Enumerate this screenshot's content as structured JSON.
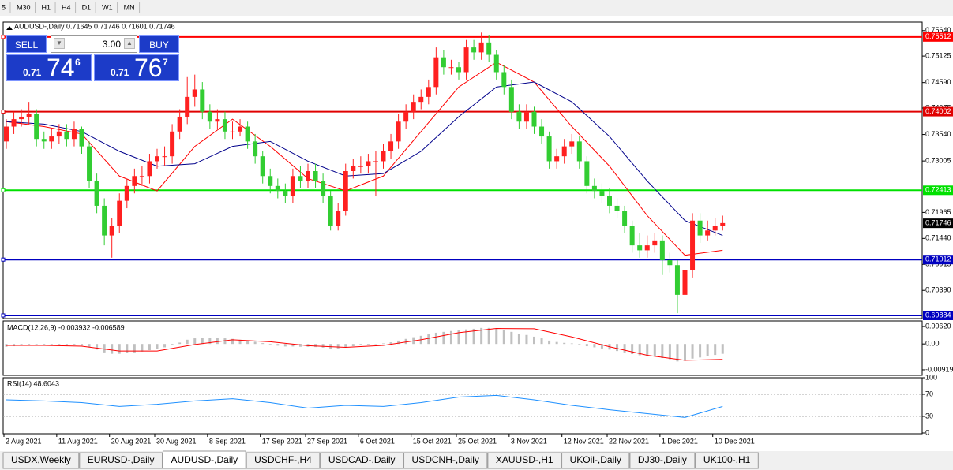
{
  "toolbar": {
    "timeframes": [
      "5",
      "M30",
      "H1",
      "H4",
      "D1",
      "W1",
      "MN"
    ]
  },
  "trade_panel": {
    "sell_label": "SELL",
    "lots": "3.00",
    "buy_label": "BUY",
    "sell": {
      "prefix": "0.71",
      "big": "74",
      "small": "6"
    },
    "buy": {
      "prefix": "0.71",
      "big": "76",
      "small": "7"
    }
  },
  "tabs": [
    "USDX,Weekly",
    "EURUSD-,Daily",
    "AUDUSD-,Daily",
    "USDCHF-,H4",
    "USDCAD-,Daily",
    "USDCNH-,Daily",
    "XAUUSD-,H1",
    "UKOil-,Daily",
    "DJ30-,Daily",
    "UK100-,H1"
  ],
  "active_tab": 2,
  "chart_data": [
    {
      "type": "candlestick",
      "title": "AUDUSD-,Daily  0.71645 0.71746 0.71601 0.71746",
      "up_color": "#ff2020",
      "down_color": "#32cd32",
      "ylim": [
        0.6982,
        0.7578
      ],
      "yticks": [
        {
          "value": 0.7564,
          "label": "0.75640"
        },
        0.75125,
        {
          "value": 0.7459,
          "label": "0.74590"
        },
        0.74075,
        {
          "value": 0.7354,
          "label": "0.73540"
        },
        0.73005,
        0.71965,
        {
          "value": 0.7144,
          "label": "0.71440"
        },
        0.70915,
        {
          "value": 0.7039,
          "label": "0.70390"
        }
      ],
      "levels": [
        {
          "value": 0.75512,
          "color": "#ff0000"
        },
        {
          "value": 0.74002,
          "color": "#e00000"
        },
        {
          "value": 0.72413,
          "color": "#00e000"
        },
        {
          "value": 0.71012,
          "color": "#0000c0"
        },
        {
          "value": 0.69884,
          "color": "#0000c0"
        }
      ],
      "last": 0.71746,
      "xticks": [
        {
          "value": 0,
          "label": "2 Aug 2021"
        },
        {
          "value": 7,
          "label": "11 Aug 2021"
        },
        {
          "value": 14,
          "label": "20 Aug 2021"
        },
        {
          "value": 20,
          "label": "30 Aug 2021"
        },
        {
          "value": 27,
          "label": "8 Sep 2021"
        },
        {
          "value": 34,
          "label": "17 Sep 2021"
        },
        {
          "value": 40,
          "label": "27 Sep 2021"
        },
        {
          "value": 47,
          "label": "6 Oct 2021"
        },
        {
          "value": 54,
          "label": "15 Oct 2021"
        },
        {
          "value": 60,
          "label": "25 Oct 2021"
        },
        {
          "value": 67,
          "label": "3 Nov 2021"
        },
        {
          "value": 74,
          "label": "12 Nov 2021"
        },
        {
          "value": 80,
          "label": "22 Nov 2021"
        },
        {
          "value": 87,
          "label": "1 Dec 2021"
        },
        {
          "value": 94,
          "label": "10 Dec 2021"
        }
      ],
      "ohlc": [
        [
          0.734,
          0.7385,
          0.7325,
          0.737
        ],
        [
          0.737,
          0.74,
          0.7355,
          0.7385
        ],
        [
          0.7385,
          0.7405,
          0.737,
          0.739
        ],
        [
          0.739,
          0.742,
          0.7375,
          0.7395
        ],
        [
          0.7395,
          0.7405,
          0.733,
          0.7345
        ],
        [
          0.7345,
          0.736,
          0.7325,
          0.734
        ],
        [
          0.734,
          0.7365,
          0.7325,
          0.735
        ],
        [
          0.735,
          0.7375,
          0.7335,
          0.736
        ],
        [
          0.736,
          0.7375,
          0.733,
          0.7345
        ],
        [
          0.7345,
          0.738,
          0.733,
          0.7365
        ],
        [
          0.7365,
          0.737,
          0.7315,
          0.733
        ],
        [
          0.733,
          0.734,
          0.7245,
          0.726
        ],
        [
          0.726,
          0.7275,
          0.7195,
          0.721
        ],
        [
          0.721,
          0.7225,
          0.713,
          0.715
        ],
        [
          0.715,
          0.7185,
          0.7105,
          0.717
        ],
        [
          0.717,
          0.7235,
          0.7155,
          0.722
        ],
        [
          0.722,
          0.7265,
          0.7205,
          0.725
        ],
        [
          0.725,
          0.7285,
          0.7235,
          0.727
        ],
        [
          0.727,
          0.729,
          0.725,
          0.727
        ],
        [
          0.727,
          0.7315,
          0.7255,
          0.73
        ],
        [
          0.73,
          0.7325,
          0.7285,
          0.731
        ],
        [
          0.731,
          0.733,
          0.729,
          0.731
        ],
        [
          0.731,
          0.7375,
          0.7295,
          0.736
        ],
        [
          0.736,
          0.7405,
          0.7345,
          0.739
        ],
        [
          0.739,
          0.747,
          0.7375,
          0.743
        ],
        [
          0.743,
          0.7475,
          0.741,
          0.7445
        ],
        [
          0.7445,
          0.746,
          0.7385,
          0.74
        ],
        [
          0.74,
          0.7415,
          0.7365,
          0.738
        ],
        [
          0.738,
          0.7405,
          0.7365,
          0.7385
        ],
        [
          0.7385,
          0.74,
          0.7345,
          0.736
        ],
        [
          0.736,
          0.738,
          0.7345,
          0.736
        ],
        [
          0.736,
          0.7385,
          0.735,
          0.737
        ],
        [
          0.737,
          0.738,
          0.7325,
          0.734
        ],
        [
          0.734,
          0.7355,
          0.7295,
          0.731
        ],
        [
          0.731,
          0.732,
          0.7255,
          0.727
        ],
        [
          0.727,
          0.7285,
          0.7235,
          0.725
        ],
        [
          0.725,
          0.7265,
          0.7225,
          0.724
        ],
        [
          0.724,
          0.7255,
          0.7215,
          0.723
        ],
        [
          0.723,
          0.7285,
          0.7215,
          0.727
        ],
        [
          0.727,
          0.729,
          0.7245,
          0.726
        ],
        [
          0.726,
          0.7295,
          0.7245,
          0.728
        ],
        [
          0.728,
          0.7295,
          0.7245,
          0.726
        ],
        [
          0.726,
          0.7275,
          0.7215,
          0.723
        ],
        [
          0.723,
          0.724,
          0.716,
          0.717
        ],
        [
          0.717,
          0.7215,
          0.716,
          0.72
        ],
        [
          0.72,
          0.7295,
          0.719,
          0.728
        ],
        [
          0.728,
          0.7305,
          0.7265,
          0.729
        ],
        [
          0.729,
          0.731,
          0.7275,
          0.729
        ],
        [
          0.729,
          0.7315,
          0.7275,
          0.73
        ],
        [
          0.73,
          0.732,
          0.723,
          0.73
        ],
        [
          0.73,
          0.7335,
          0.7285,
          0.732
        ],
        [
          0.732,
          0.7355,
          0.7305,
          0.734
        ],
        [
          0.734,
          0.7395,
          0.7325,
          0.738
        ],
        [
          0.738,
          0.7415,
          0.7365,
          0.74
        ],
        [
          0.74,
          0.7435,
          0.7385,
          0.742
        ],
        [
          0.742,
          0.7445,
          0.7405,
          0.743
        ],
        [
          0.743,
          0.7465,
          0.7415,
          0.745
        ],
        [
          0.745,
          0.753,
          0.7435,
          0.751
        ],
        [
          0.751,
          0.7525,
          0.7475,
          0.749
        ],
        [
          0.749,
          0.7505,
          0.7475,
          0.749
        ],
        [
          0.749,
          0.75,
          0.7465,
          0.748
        ],
        [
          0.748,
          0.7545,
          0.7465,
          0.753
        ],
        [
          0.753,
          0.7545,
          0.7505,
          0.752
        ],
        [
          0.752,
          0.756,
          0.7505,
          0.754
        ],
        [
          0.754,
          0.7555,
          0.75,
          0.7515
        ],
        [
          0.7515,
          0.7525,
          0.7465,
          0.748
        ],
        [
          0.748,
          0.7495,
          0.7435,
          0.745
        ],
        [
          0.745,
          0.7465,
          0.7385,
          0.74
        ],
        [
          0.74,
          0.7415,
          0.7365,
          0.738
        ],
        [
          0.738,
          0.7415,
          0.7365,
          0.74
        ],
        [
          0.74,
          0.741,
          0.7355,
          0.737
        ],
        [
          0.737,
          0.7385,
          0.7335,
          0.735
        ],
        [
          0.735,
          0.736,
          0.7285,
          0.73
        ],
        [
          0.73,
          0.7325,
          0.7285,
          0.731
        ],
        [
          0.731,
          0.7345,
          0.7295,
          0.733
        ],
        [
          0.733,
          0.7355,
          0.7315,
          0.734
        ],
        [
          0.734,
          0.735,
          0.7285,
          0.73
        ],
        [
          0.73,
          0.731,
          0.7235,
          0.725
        ],
        [
          0.725,
          0.7265,
          0.7225,
          0.724
        ],
        [
          0.724,
          0.7255,
          0.7215,
          0.723
        ],
        [
          0.723,
          0.7245,
          0.7195,
          0.721
        ],
        [
          0.721,
          0.7225,
          0.7185,
          0.72
        ],
        [
          0.72,
          0.721,
          0.7155,
          0.717
        ],
        [
          0.717,
          0.718,
          0.7115,
          0.713
        ],
        [
          0.713,
          0.7155,
          0.7105,
          0.712
        ],
        [
          0.712,
          0.715,
          0.7105,
          0.713
        ],
        [
          0.713,
          0.7155,
          0.7115,
          0.714
        ],
        [
          0.714,
          0.715,
          0.707,
          0.71
        ],
        [
          0.71,
          0.7115,
          0.7075,
          0.709
        ],
        [
          0.709,
          0.71,
          0.6993,
          0.703
        ],
        [
          0.703,
          0.7095,
          0.7015,
          0.708
        ],
        [
          0.708,
          0.7195,
          0.7065,
          0.718
        ],
        [
          0.718,
          0.7195,
          0.7135,
          0.715
        ],
        [
          0.715,
          0.718,
          0.714,
          0.716
        ],
        [
          0.716,
          0.7185,
          0.715,
          0.717
        ],
        [
          0.717,
          0.719,
          0.716,
          0.7175
        ]
      ],
      "lines": [
        {
          "color": "#ff0000",
          "x": [
            0,
            5,
            10,
            15,
            20,
            25,
            30,
            35,
            40,
            45,
            50,
            55,
            60,
            65,
            70,
            75,
            80,
            85,
            90,
            95
          ],
          "values": [
            0.738,
            0.737,
            0.7355,
            0.727,
            0.724,
            0.733,
            0.7385,
            0.733,
            0.7265,
            0.724,
            0.727,
            0.736,
            0.745,
            0.75,
            0.746,
            0.737,
            0.729,
            0.719,
            0.711,
            0.712
          ]
        },
        {
          "color": "#00008b",
          "x": [
            0,
            5,
            10,
            15,
            20,
            25,
            30,
            35,
            40,
            45,
            50,
            55,
            60,
            65,
            70,
            75,
            80,
            85,
            90,
            95
          ],
          "values": [
            0.738,
            0.7375,
            0.736,
            0.732,
            0.729,
            0.7295,
            0.733,
            0.734,
            0.73,
            0.727,
            0.7275,
            0.732,
            0.739,
            0.745,
            0.746,
            0.742,
            0.735,
            0.726,
            0.718,
            0.715
          ]
        }
      ]
    },
    {
      "type": "bar",
      "title": "MACD(12,26,9) -0.003932 -0.006589",
      "color": "#c0c0c0",
      "ylim": [
        -0.0106,
        0.0079
      ],
      "yticks": [
        {
          "value": 0.0062,
          "label": "0.00620"
        },
        {
          "value": 0,
          "label": "0.00"
        },
        -0.00919
      ],
      "values": [
        -0.001,
        -0.0008,
        -0.0005,
        -0.0003,
        -0.0002,
        -0.0004,
        -0.0005,
        -0.0005,
        -0.0006,
        -0.0005,
        -0.0006,
        -0.0012,
        -0.002,
        -0.003,
        -0.0035,
        -0.0035,
        -0.0032,
        -0.003,
        -0.0027,
        -0.0022,
        -0.0018,
        -0.0012,
        -0.0005,
        0.0005,
        0.0015,
        0.002,
        0.0022,
        0.0022,
        0.0022,
        0.002,
        0.0018,
        0.0015,
        0.0012,
        0.0008,
        0.0003,
        -0.0002,
        -0.0006,
        -0.0009,
        -0.0009,
        -0.001,
        -0.001,
        -0.0011,
        -0.0013,
        -0.0017,
        -0.0016,
        -0.0012,
        -0.0008,
        -0.0005,
        -0.0003,
        -0.0001,
        0.0002,
        0.0006,
        0.0012,
        0.0018,
        0.0024,
        0.0029,
        0.0034,
        0.004,
        0.0043,
        0.0046,
        0.0048,
        0.0052,
        0.0054,
        0.0057,
        0.0057,
        0.0055,
        0.005,
        0.0043,
        0.0036,
        0.0032,
        0.0026,
        0.002,
        0.0012,
        0.0007,
        0.0004,
        0.0002,
        -0.0002,
        -0.0008,
        -0.0012,
        -0.0016,
        -0.002,
        -0.0025,
        -0.003,
        -0.0036,
        -0.004,
        -0.0043,
        -0.0045,
        -0.005,
        -0.0054,
        -0.0062,
        -0.006,
        -0.0052,
        -0.0048,
        -0.0044,
        -0.0039,
        -0.0035
      ],
      "lines": [
        {
          "color": "#ff0000",
          "x": [
            0,
            5,
            10,
            15,
            20,
            25,
            30,
            35,
            40,
            45,
            50,
            55,
            60,
            65,
            70,
            75,
            80,
            85,
            90,
            95
          ],
          "values": [
            -0.0005,
            -0.0005,
            -0.0008,
            -0.0025,
            -0.0025,
            -0.0002,
            0.0015,
            0.0008,
            -0.0006,
            -0.0012,
            -0.0005,
            0.0015,
            0.004,
            0.0055,
            0.0054,
            0.0025,
            -0.001,
            -0.004,
            -0.0058,
            -0.0055
          ]
        }
      ]
    },
    {
      "type": "line",
      "title": "RSI(14) 48.6043",
      "color": "#1e90ff",
      "ylim": [
        0,
        100
      ],
      "yticks": [
        100,
        70,
        30,
        0
      ],
      "levels": [
        70,
        30
      ],
      "x": [
        0,
        5,
        10,
        15,
        20,
        25,
        30,
        35,
        40,
        45,
        50,
        55,
        60,
        65,
        70,
        75,
        80,
        85,
        90,
        95
      ],
      "values": [
        60,
        58,
        55,
        48,
        52,
        58,
        62,
        55,
        45,
        50,
        48,
        55,
        65,
        68,
        60,
        50,
        42,
        35,
        28,
        48
      ]
    }
  ]
}
